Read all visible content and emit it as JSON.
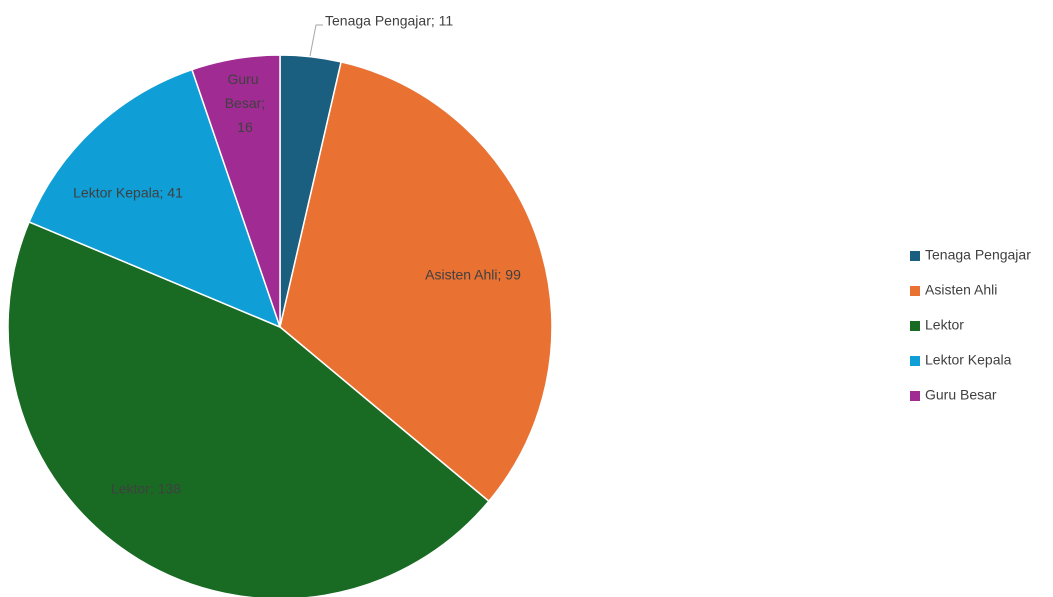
{
  "chart_data": {
    "type": "pie",
    "categories": [
      "Tenaga Pengajar",
      "Asisten Ahli",
      "Lektor",
      "Lektor Kepala",
      "Guru Besar"
    ],
    "values": [
      11,
      99,
      138,
      41,
      16
    ],
    "value_labels": [
      "Tenaga Pengajar; 11",
      "Asisten Ahli; 99",
      "Lektor; 138",
      "Lektor Kepala; 41",
      "Guru Besar; 16"
    ],
    "colors": [
      "#1a5e80",
      "#e97132",
      "#196b24",
      "#0f9ed5",
      "#a02b93"
    ],
    "legend": "right"
  }
}
